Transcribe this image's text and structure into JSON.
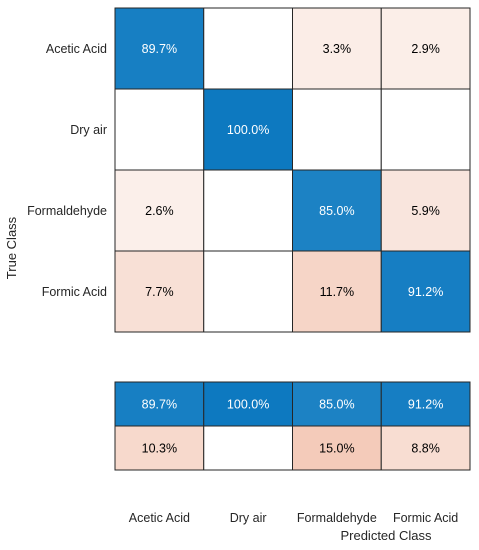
{
  "chart_data": {
    "type": "heatmap",
    "title": "",
    "xlabel": "Predicted Class",
    "ylabel": "True Class",
    "classes": [
      "Acetic Acid",
      "Dry air",
      "Formaldehyde",
      "Formic Acid"
    ],
    "matrix": [
      [
        89.7,
        null,
        3.3,
        2.9
      ],
      [
        null,
        100.0,
        null,
        null
      ],
      [
        2.6,
        null,
        85.0,
        5.9
      ],
      [
        7.7,
        null,
        11.7,
        91.2
      ]
    ],
    "column_summary": [
      [
        89.7,
        100.0,
        85.0,
        91.2
      ],
      [
        10.3,
        null,
        15.0,
        8.8
      ]
    ],
    "value_suffix": "%",
    "colors": {
      "correct": "#0072BD",
      "incorrect": "#D95319",
      "border": "#262626"
    }
  }
}
